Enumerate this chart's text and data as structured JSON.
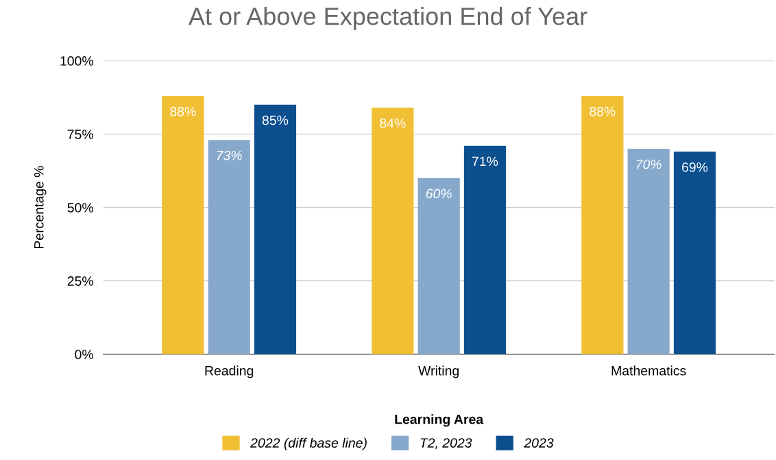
{
  "chart_data": {
    "type": "bar",
    "title": "At or Above Expectation End of Year",
    "xlabel": "Learning Area",
    "ylabel": "Percentage %",
    "categories": [
      "Reading",
      "Writing",
      "Mathematics"
    ],
    "series": [
      {
        "name": "2022 (diff base line)",
        "color": "#f1bf33",
        "values": [
          88,
          84,
          88
        ],
        "value_labels": [
          "88%",
          "84%",
          "88%"
        ]
      },
      {
        "name": "T2, 2023",
        "color": "#86a8cb",
        "values": [
          73,
          60,
          70
        ],
        "value_labels": [
          "73%",
          "60%",
          "70%"
        ]
      },
      {
        "name": "2023",
        "color": "#0b4f8f",
        "values": [
          85,
          71,
          69
        ],
        "value_labels": [
          "85%",
          "71%",
          "69%"
        ]
      }
    ],
    "ylim": [
      0,
      100
    ],
    "yticks": [
      {
        "value": 0,
        "label": "0%"
      },
      {
        "value": 25,
        "label": "25%"
      },
      {
        "value": 50,
        "label": "50%"
      },
      {
        "value": 75,
        "label": "75%"
      },
      {
        "value": 100,
        "label": "100%"
      }
    ],
    "grid": "y",
    "legend": "bottom"
  }
}
